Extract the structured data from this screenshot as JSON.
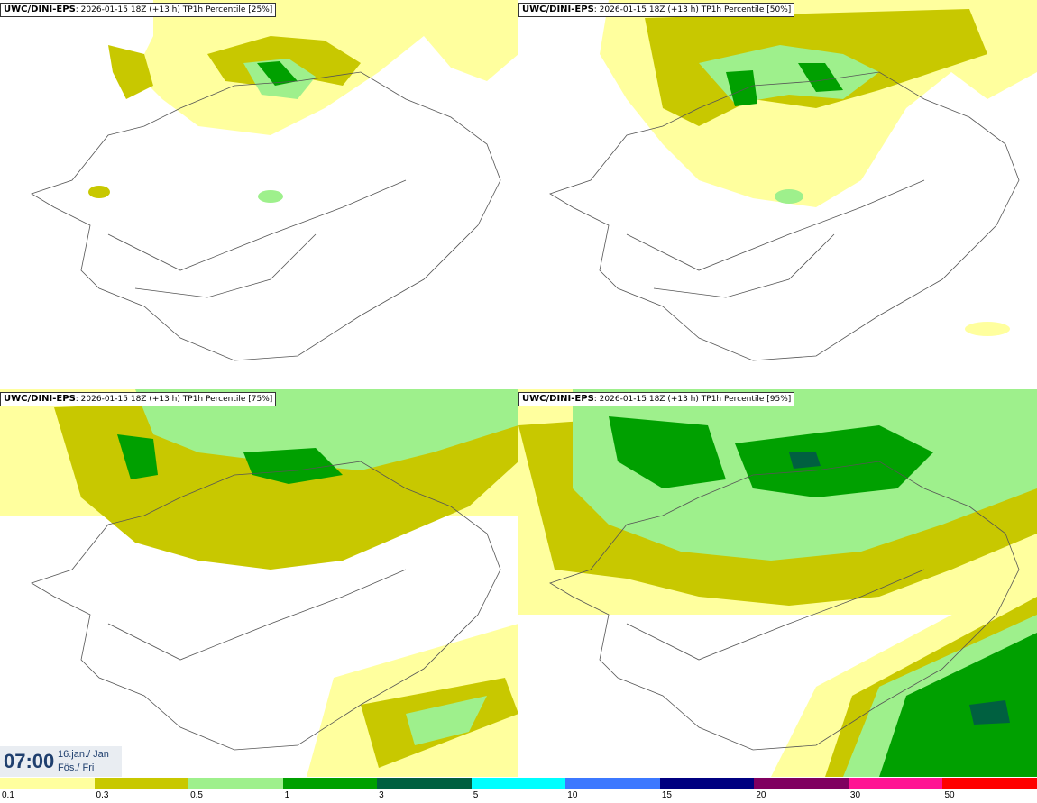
{
  "panels": [
    {
      "label": "UWC/DINI-EPS",
      "subtitle": "2026-01-15 18Z (+13 h)",
      "field": "TP1h Percentile [25%]"
    },
    {
      "label": "UWC/DINI-EPS",
      "subtitle": "2026-01-15 18Z (+13 h)",
      "field": "TP1h Percentile [50%]"
    },
    {
      "label": "UWC/DINI-EPS",
      "subtitle": "2026-01-15 18Z (+13 h)",
      "field": "TP1h Percentile [75%]"
    },
    {
      "label": "UWC/DINI-EPS",
      "subtitle": "2026-01-15 18Z (+13 h)",
      "field": "TP1h Percentile [95%]"
    }
  ],
  "valid_time": {
    "time": "07:00",
    "date_line1": "16.jan./ Jan",
    "date_line2": "Fös./ Fri"
  },
  "colorscale": {
    "colors": [
      "#ffff9e",
      "#c8c800",
      "#9ef08c",
      "#00a000",
      "#006040",
      "#00ffff",
      "#3c78ff",
      "#000080",
      "#800060",
      "#ff1493",
      "#ff0000"
    ],
    "labels": [
      "0.1",
      "0.3",
      "0.5",
      "1",
      "3",
      "5",
      "10",
      "15",
      "20",
      "30",
      "50"
    ]
  }
}
